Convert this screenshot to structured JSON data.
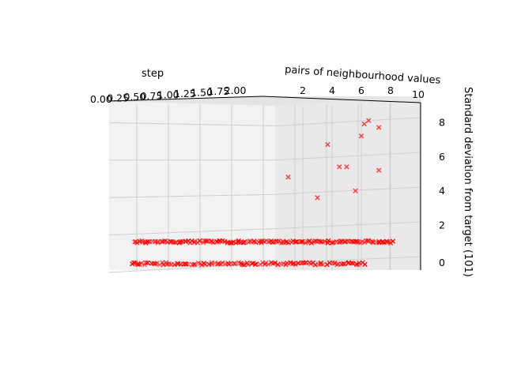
{
  "chart_data": {
    "type": "scatter",
    "projection": "3d",
    "title": "",
    "xlabel": "step",
    "ylabel": "pairs of neighbourhood values",
    "zlabel": "Standard deviation from target (101)",
    "x_ticks": [
      "0.00",
      "0.25",
      "0.50",
      "0.75",
      "1.00",
      "1.25",
      "1.50",
      "1.75",
      "2.00"
    ],
    "y_ticks": [
      "2",
      "4",
      "6",
      "8",
      "10"
    ],
    "z_ticks": [
      "0",
      "2",
      "4",
      "6",
      "8"
    ],
    "xlim": [
      0,
      2
    ],
    "ylim": [
      0,
      10
    ],
    "zlim": [
      -0.3,
      9
    ],
    "grid": true,
    "marker": "x",
    "color": "#ff0000",
    "points": [
      [
        1.0,
        1.0,
        5.1
      ],
      [
        1.0,
        3.0,
        3.9
      ],
      [
        1.0,
        3.7,
        7.0
      ],
      [
        1.0,
        4.5,
        5.7
      ],
      [
        1.0,
        5.0,
        5.7
      ],
      [
        1.0,
        5.6,
        4.3
      ],
      [
        1.0,
        6.0,
        7.5
      ],
      [
        1.0,
        6.2,
        8.2
      ],
      [
        1.0,
        6.5,
        8.4
      ],
      [
        1.0,
        7.2,
        8.0
      ],
      [
        1.0,
        7.2,
        5.5
      ]
    ],
    "band_upper": {
      "z": 1.0,
      "y_range": [
        -9.5,
        8.2
      ],
      "count": 150
    },
    "band_lower": {
      "z": 0.0,
      "y_range": [
        -9.7,
        6.2
      ],
      "count": 110
    }
  }
}
